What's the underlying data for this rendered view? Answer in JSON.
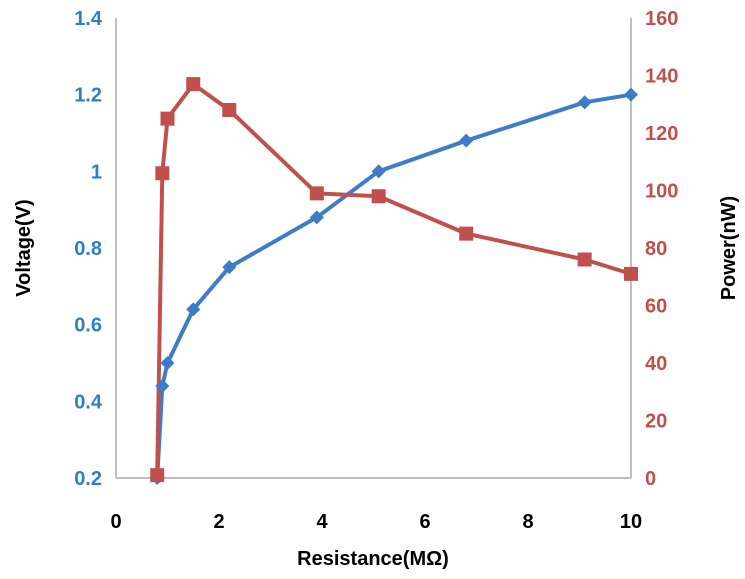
{
  "chart_data": {
    "type": "line",
    "xlabel": "Resistance(MΩ)",
    "ylabel_left": "Voltage(V)",
    "ylabel_right": "Power(nW)",
    "xlim": [
      0,
      10
    ],
    "ylim_left": [
      0.2,
      1.4
    ],
    "ylim_right": [
      0,
      160
    ],
    "x_ticks": [
      "0",
      "2",
      "4",
      "6",
      "8",
      "10"
    ],
    "y_left_ticks": [
      "0.2",
      "0.4",
      "0.6",
      "0.8",
      "1",
      "1.2",
      "1.4"
    ],
    "y_right_ticks": [
      "0",
      "20",
      "40",
      "60",
      "80",
      "100",
      "120",
      "140",
      "160"
    ],
    "grid": false,
    "series": [
      {
        "axis": "left",
        "color": "#3d7cc9",
        "marker": "diamond",
        "x": [
          0.8,
          0.9,
          1.0,
          1.5,
          2.2,
          3.9,
          5.1,
          6.8,
          9.1,
          10.0
        ],
        "values": [
          0.2,
          0.44,
          0.5,
          0.64,
          0.75,
          0.88,
          1.0,
          1.08,
          1.18,
          1.2
        ]
      },
      {
        "axis": "right",
        "color": "#c0504d",
        "marker": "square",
        "x": [
          0.8,
          0.9,
          1.0,
          1.5,
          2.2,
          3.9,
          5.1,
          6.8,
          9.1,
          10.0
        ],
        "values": [
          1,
          106,
          125,
          137,
          128,
          99,
          98,
          85,
          76,
          71
        ]
      }
    ]
  }
}
